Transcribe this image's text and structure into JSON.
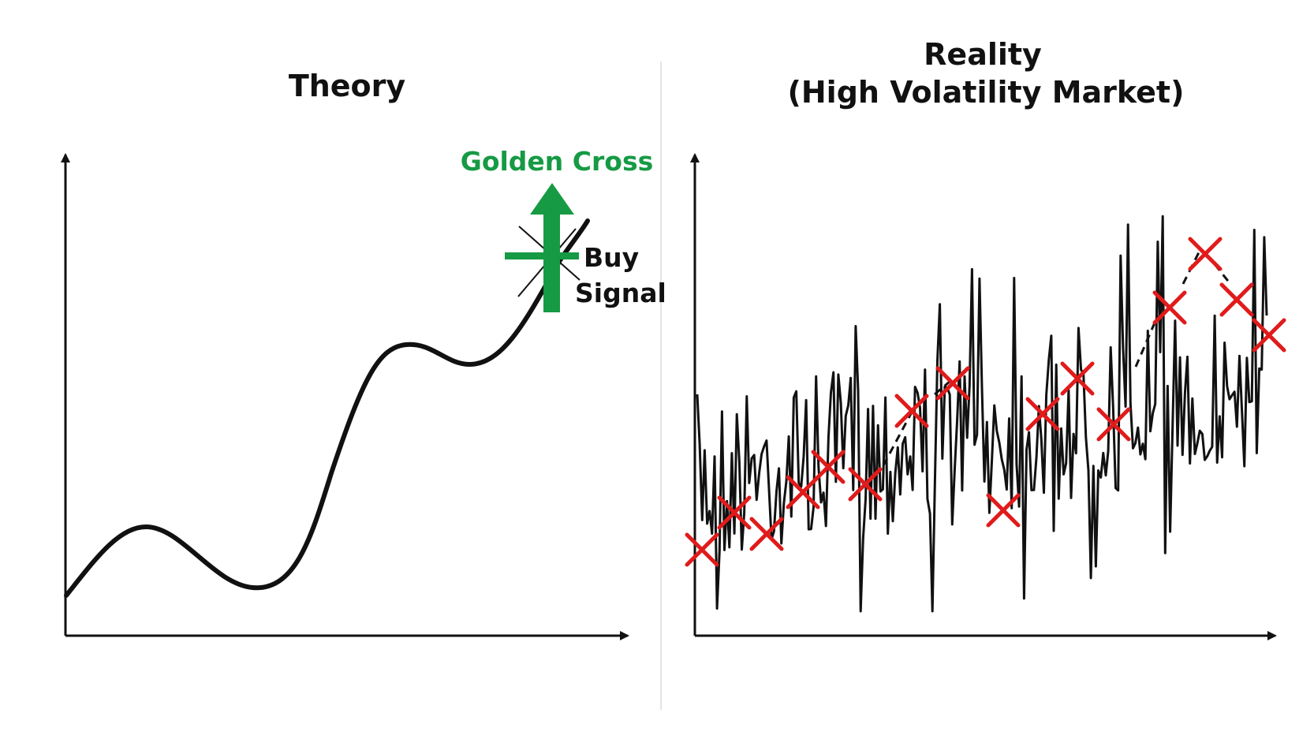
{
  "left_panel": {
    "title": "Theory",
    "annotation": {
      "label": "Golden Cross",
      "color": "#169a44"
    },
    "signal": {
      "line1": "Buy",
      "line2": "Signal"
    },
    "curve_color": "#111111"
  },
  "right_panel": {
    "title_line1": "Reality",
    "title_line2": "(High Volatility Market)",
    "noise_color": "#111111",
    "marker_color": "#e01b1b",
    "marker_symbol": "x-icon"
  },
  "axis_color": "#111111",
  "divider_color": "#e4e4e4"
}
